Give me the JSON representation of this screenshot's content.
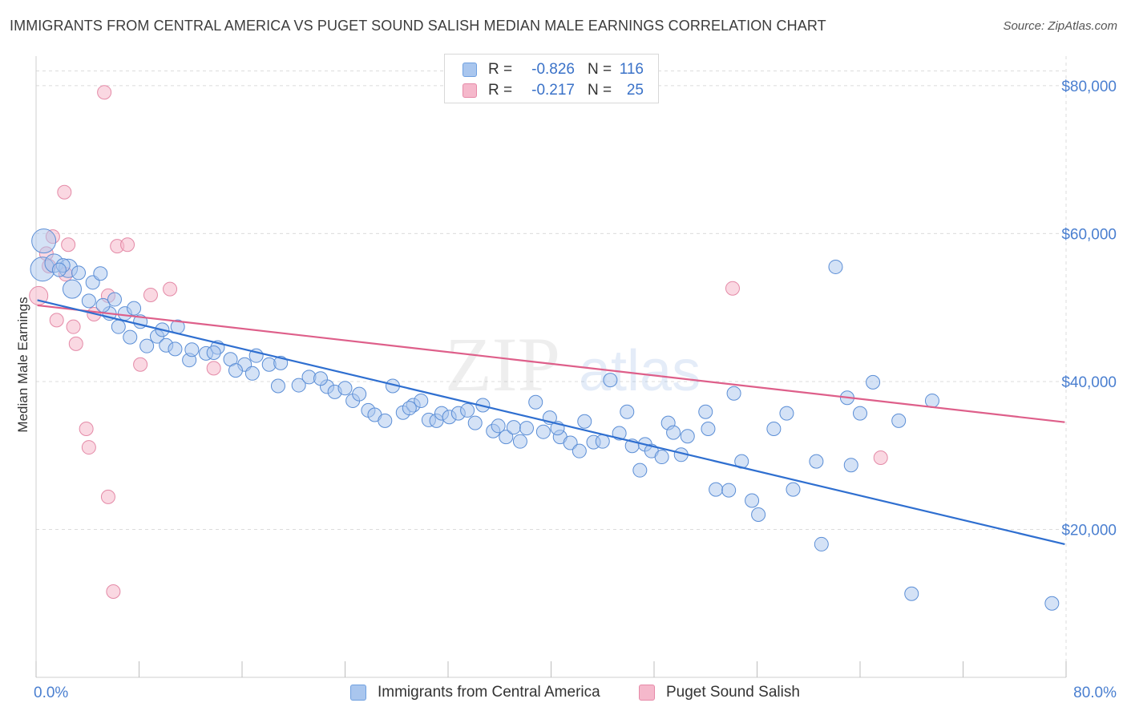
{
  "title": "IMMIGRANTS FROM CENTRAL AMERICA VS PUGET SOUND SALISH MEDIAN MALE EARNINGS CORRELATION CHART",
  "source": "Source: ZipAtlas.com",
  "watermark": {
    "zip": "ZIP",
    "atlas": "atlas"
  },
  "legend": {
    "rows": [
      {
        "r_label": "R =",
        "r_value": "-0.826",
        "n_label": "N =",
        "n_value": "116",
        "color": "#6fa0e0"
      },
      {
        "r_label": "R =",
        "r_value": "-0.217",
        "n_label": "N =",
        "n_value": "25",
        "color": "#e68aa8"
      }
    ]
  },
  "bottom_legend": {
    "series1": "Immigrants from Central America",
    "series2": "Puget Sound Salish"
  },
  "colors": {
    "blue_fill": "#a9c6ee",
    "blue_stroke": "#5b8ed6",
    "blue_line": "#2f6fd0",
    "pink_fill": "#f5b8cb",
    "pink_stroke": "#e48aa7",
    "pink_line": "#de5f8a",
    "grid": "#dcdcdc",
    "axis_text": "#4a7fd0"
  },
  "chart_data": {
    "type": "scatter",
    "title": "IMMIGRANTS FROM CENTRAL AMERICA VS PUGET SOUND SALISH MEDIAN MALE EARNINGS CORRELATION CHART",
    "xlabel": "",
    "ylabel": "Median Male Earnings",
    "xlim": [
      0,
      80
    ],
    "ylim": [
      0,
      84000
    ],
    "x_tick_labels": [
      {
        "value": 0,
        "label": "0.0%"
      },
      {
        "value": 80,
        "label": "80.0%"
      }
    ],
    "y_ticks": [
      {
        "value": 20000,
        "label": "$20,000"
      },
      {
        "value": 40000,
        "label": "$40,000"
      },
      {
        "value": 60000,
        "label": "$60,000"
      },
      {
        "value": 80000,
        "label": "$80,000"
      }
    ],
    "series": [
      {
        "name": "Immigrants from Central America",
        "color": "#6fa0e0",
        "r": -0.826,
        "n": 116,
        "trend": {
          "x0": 0.1,
          "y0": 51000,
          "x1": 79.9,
          "y1": 18000
        },
        "points": [
          [
            0.6,
            59000,
            3
          ],
          [
            0.5,
            55200,
            3
          ],
          [
            1.4,
            56000,
            2
          ],
          [
            2.5,
            55300,
            2
          ],
          [
            2.8,
            52500,
            2
          ],
          [
            3.3,
            54700,
            1
          ],
          [
            4.4,
            53400,
            1
          ],
          [
            5.0,
            54600,
            1
          ],
          [
            4.1,
            50900,
            1
          ],
          [
            5.7,
            49200,
            1
          ],
          [
            6.9,
            49200,
            1
          ],
          [
            6.4,
            47400,
            1
          ],
          [
            5.2,
            50300,
            1
          ],
          [
            6.1,
            51100,
            1
          ],
          [
            7.6,
            49900,
            1
          ],
          [
            8.1,
            48100,
            1
          ],
          [
            7.3,
            46000,
            1
          ],
          [
            8.6,
            44800,
            1
          ],
          [
            9.4,
            46100,
            1
          ],
          [
            10.1,
            44900,
            1
          ],
          [
            10.8,
            44400,
            1
          ],
          [
            11.0,
            47400,
            1
          ],
          [
            11.9,
            42900,
            1
          ],
          [
            12.1,
            44300,
            1
          ],
          [
            13.2,
            43800,
            1
          ],
          [
            14.1,
            44600,
            1
          ],
          [
            15.1,
            43000,
            1
          ],
          [
            16.2,
            42300,
            1
          ],
          [
            17.1,
            43500,
            1
          ],
          [
            18.1,
            42300,
            1
          ],
          [
            19.0,
            42500,
            1
          ],
          [
            15.5,
            41500,
            1
          ],
          [
            16.8,
            41100,
            1
          ],
          [
            18.8,
            39400,
            1
          ],
          [
            20.4,
            39500,
            1
          ],
          [
            22.6,
            39300,
            1
          ],
          [
            21.2,
            40600,
            1
          ],
          [
            22.1,
            40400,
            1
          ],
          [
            23.2,
            38600,
            1
          ],
          [
            24.0,
            39100,
            1
          ],
          [
            24.6,
            37400,
            1
          ],
          [
            25.1,
            38300,
            1
          ],
          [
            25.8,
            36100,
            1
          ],
          [
            26.3,
            35500,
            1
          ],
          [
            27.1,
            34700,
            1
          ],
          [
            27.7,
            39400,
            1
          ],
          [
            28.5,
            35800,
            1
          ],
          [
            29.3,
            36800,
            1
          ],
          [
            29.9,
            37400,
            1
          ],
          [
            29.0,
            36400,
            1
          ],
          [
            30.5,
            34800,
            1
          ],
          [
            31.1,
            34700,
            1
          ],
          [
            31.5,
            35700,
            1
          ],
          [
            32.1,
            35200,
            1
          ],
          [
            32.8,
            35700,
            1
          ],
          [
            33.5,
            36100,
            1
          ],
          [
            34.1,
            34400,
            1
          ],
          [
            34.7,
            36800,
            1
          ],
          [
            35.5,
            33300,
            1
          ],
          [
            35.9,
            34000,
            1
          ],
          [
            36.5,
            32500,
            1
          ],
          [
            37.1,
            33800,
            1
          ],
          [
            37.6,
            31900,
            1
          ],
          [
            38.1,
            33700,
            1
          ],
          [
            38.8,
            37200,
            1
          ],
          [
            39.4,
            33200,
            1
          ],
          [
            39.9,
            35100,
            1
          ],
          [
            40.7,
            32500,
            1
          ],
          [
            40.5,
            33700,
            1
          ],
          [
            41.5,
            31700,
            1
          ],
          [
            42.2,
            30600,
            1
          ],
          [
            42.6,
            34600,
            1
          ],
          [
            43.3,
            31800,
            1
          ],
          [
            44.0,
            31900,
            1
          ],
          [
            44.6,
            40200,
            1
          ],
          [
            45.3,
            33000,
            1
          ],
          [
            45.9,
            35900,
            1
          ],
          [
            46.3,
            31300,
            1
          ],
          [
            46.9,
            28000,
            1
          ],
          [
            47.3,
            31500,
            1
          ],
          [
            47.8,
            30600,
            1
          ],
          [
            48.6,
            29800,
            1
          ],
          [
            49.1,
            34400,
            1
          ],
          [
            49.5,
            33100,
            1
          ],
          [
            50.1,
            30100,
            1
          ],
          [
            50.6,
            32600,
            1
          ],
          [
            52.0,
            35900,
            1
          ],
          [
            52.2,
            33600,
            1
          ],
          [
            52.8,
            25400,
            1
          ],
          [
            53.8,
            25300,
            1
          ],
          [
            54.2,
            38400,
            1
          ],
          [
            54.8,
            29200,
            1
          ],
          [
            55.6,
            23900,
            1
          ],
          [
            56.1,
            22000,
            1
          ],
          [
            57.3,
            33600,
            1
          ],
          [
            58.3,
            35700,
            1
          ],
          [
            58.8,
            25400,
            1
          ],
          [
            60.6,
            29200,
            1
          ],
          [
            61.0,
            18000,
            1
          ],
          [
            62.1,
            55500,
            1
          ],
          [
            63.0,
            37800,
            1
          ],
          [
            63.3,
            28700,
            1
          ],
          [
            64.0,
            35700,
            1
          ],
          [
            65.0,
            39900,
            1
          ],
          [
            67.0,
            34700,
            1
          ],
          [
            68.0,
            11300,
            1
          ],
          [
            69.6,
            37400,
            1
          ],
          [
            78.9,
            10000,
            1
          ],
          [
            2.1,
            55700,
            1
          ],
          [
            1.8,
            55100,
            1
          ],
          [
            9.8,
            47000,
            1
          ],
          [
            13.8,
            43900,
            1
          ]
        ]
      },
      {
        "name": "Puget Sound Salish",
        "color": "#e68aa8",
        "r": -0.217,
        "n": 25,
        "trend": {
          "x0": 0.1,
          "y0": 50300,
          "x1": 79.9,
          "y1": 34500
        },
        "points": [
          [
            0.2,
            51600,
            2
          ],
          [
            0.8,
            57300,
            1
          ],
          [
            1.3,
            59600,
            1
          ],
          [
            1.0,
            55600,
            1
          ],
          [
            1.6,
            48300,
            1
          ],
          [
            2.3,
            54500,
            1
          ],
          [
            2.5,
            58500,
            1
          ],
          [
            2.9,
            47400,
            1
          ],
          [
            3.1,
            45100,
            1
          ],
          [
            3.9,
            33600,
            1
          ],
          [
            4.1,
            31100,
            1
          ],
          [
            4.5,
            49100,
            1
          ],
          [
            5.3,
            79100,
            1
          ],
          [
            5.6,
            51600,
            1
          ],
          [
            5.6,
            24400,
            1
          ],
          [
            6.0,
            11600,
            1
          ],
          [
            6.3,
            58300,
            1
          ],
          [
            7.1,
            58500,
            1
          ],
          [
            8.1,
            42300,
            1
          ],
          [
            8.9,
            51700,
            1
          ],
          [
            10.4,
            52500,
            1
          ],
          [
            13.8,
            41800,
            1
          ],
          [
            2.2,
            65600,
            1
          ],
          [
            54.1,
            52600,
            1
          ],
          [
            65.6,
            29700,
            1
          ]
        ]
      }
    ]
  }
}
